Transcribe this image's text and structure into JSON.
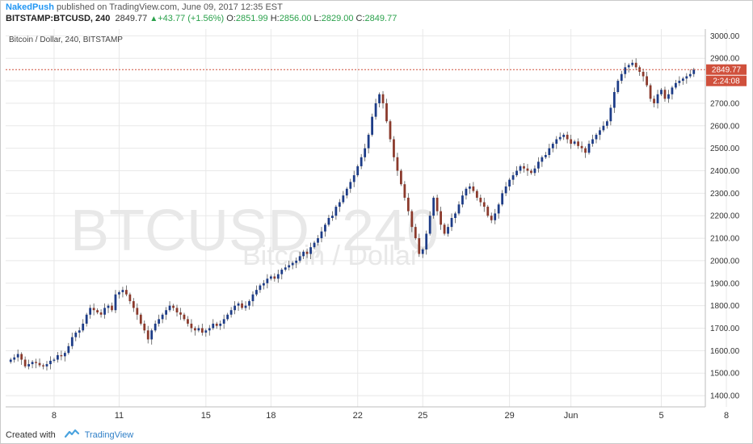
{
  "header": {
    "author": "NakedPush",
    "published_text": "published on TradingView.com, June 09, 2017 12:35 EST"
  },
  "ticker": {
    "symbol": "BITSTAMP:BTCUSD, 240",
    "last": "2849.77",
    "change": "+43.77 (+1.56%)",
    "o_label": "O:",
    "o": "2851.99",
    "h_label": "H:",
    "h": "2856.00",
    "l_label": "L:",
    "l": "2829.00",
    "c_label": "C:",
    "c": "2849.77"
  },
  "chart": {
    "legend": "Bitcoin / Dollar, 240, BITSTAMP",
    "watermark_symbol": "BTCUSD, 240",
    "watermark_name": "Bitcoin / Dollar",
    "price_label": "2849.77",
    "countdown": "2:24:08"
  },
  "footer": {
    "created_with": "Created with",
    "brand": "TradingView"
  },
  "colors": {
    "up": "#1d3c87",
    "down": "#8b3a2c",
    "wick": "#555555",
    "price_line": "#d0503c",
    "grid": "#e8e8e8"
  },
  "chart_data": {
    "type": "candlestick",
    "title": "Bitcoin / Dollar, 240, BITSTAMP",
    "ylim": [
      1350,
      3030
    ],
    "y_ticks": [
      1400,
      1500,
      1600,
      1700,
      1800,
      1900,
      2000,
      2100,
      2200,
      2300,
      2400,
      2500,
      2600,
      2700,
      2800,
      2900,
      3000
    ],
    "y_tick_labels": [
      "1400.00",
      "1500.00",
      "1600.00",
      "1700.00",
      "1800.00",
      "1900.00",
      "2000.00",
      "2100.00",
      "2200.00",
      "2300.00",
      "2400.00",
      "2500.00",
      "2600.00",
      "2700.00",
      "2800.00",
      "2900.00",
      "3000.00"
    ],
    "x_ticks": [
      {
        "label": "8",
        "index": 12
      },
      {
        "label": "11",
        "index": 30
      },
      {
        "label": "15",
        "index": 54
      },
      {
        "label": "18",
        "index": 72
      },
      {
        "label": "22",
        "index": 96
      },
      {
        "label": "25",
        "index": 114
      },
      {
        "label": "29",
        "index": 138
      },
      {
        "label": "Jun",
        "index": 155
      },
      {
        "label": "5",
        "index": 180
      },
      {
        "label": "8",
        "index": 198
      }
    ],
    "last_price": 2849.77,
    "close_series": [
      1560,
      1570,
      1585,
      1560,
      1530,
      1540,
      1550,
      1545,
      1535,
      1530,
      1540,
      1555,
      1560,
      1580,
      1575,
      1590,
      1620,
      1660,
      1680,
      1690,
      1720,
      1760,
      1790,
      1780,
      1770,
      1760,
      1790,
      1800,
      1780,
      1850,
      1860,
      1870,
      1850,
      1820,
      1790,
      1760,
      1720,
      1690,
      1650,
      1690,
      1720,
      1740,
      1760,
      1780,
      1800,
      1790,
      1770,
      1760,
      1740,
      1720,
      1700,
      1690,
      1700,
      1680,
      1690,
      1700,
      1720,
      1710,
      1720,
      1740,
      1760,
      1780,
      1800,
      1810,
      1790,
      1800,
      1820,
      1850,
      1870,
      1890,
      1900,
      1920,
      1930,
      1920,
      1940,
      1960,
      1970,
      1980,
      1990,
      2000,
      2020,
      2040,
      2030,
      2060,
      2080,
      2100,
      2130,
      2160,
      2190,
      2200,
      2240,
      2260,
      2290,
      2320,
      2350,
      2380,
      2420,
      2460,
      2500,
      2560,
      2640,
      2700,
      2740,
      2700,
      2620,
      2540,
      2460,
      2400,
      2340,
      2280,
      2220,
      2150,
      2100,
      2030,
      2050,
      2120,
      2200,
      2280,
      2220,
      2160,
      2120,
      2150,
      2190,
      2210,
      2250,
      2290,
      2320,
      2330,
      2310,
      2280,
      2260,
      2240,
      2200,
      2180,
      2210,
      2250,
      2300,
      2330,
      2360,
      2380,
      2400,
      2420,
      2410,
      2400,
      2390,
      2410,
      2440,
      2460,
      2470,
      2500,
      2520,
      2540,
      2550,
      2560,
      2540,
      2520,
      2530,
      2510,
      2500,
      2480,
      2520,
      2540,
      2560,
      2580,
      2600,
      2620,
      2680,
      2750,
      2800,
      2830,
      2860,
      2870,
      2880,
      2860,
      2840,
      2820,
      2780,
      2720,
      2700,
      2740,
      2760,
      2720,
      2740,
      2770,
      2790,
      2800,
      2810,
      2820,
      2830,
      2849.77
    ]
  }
}
